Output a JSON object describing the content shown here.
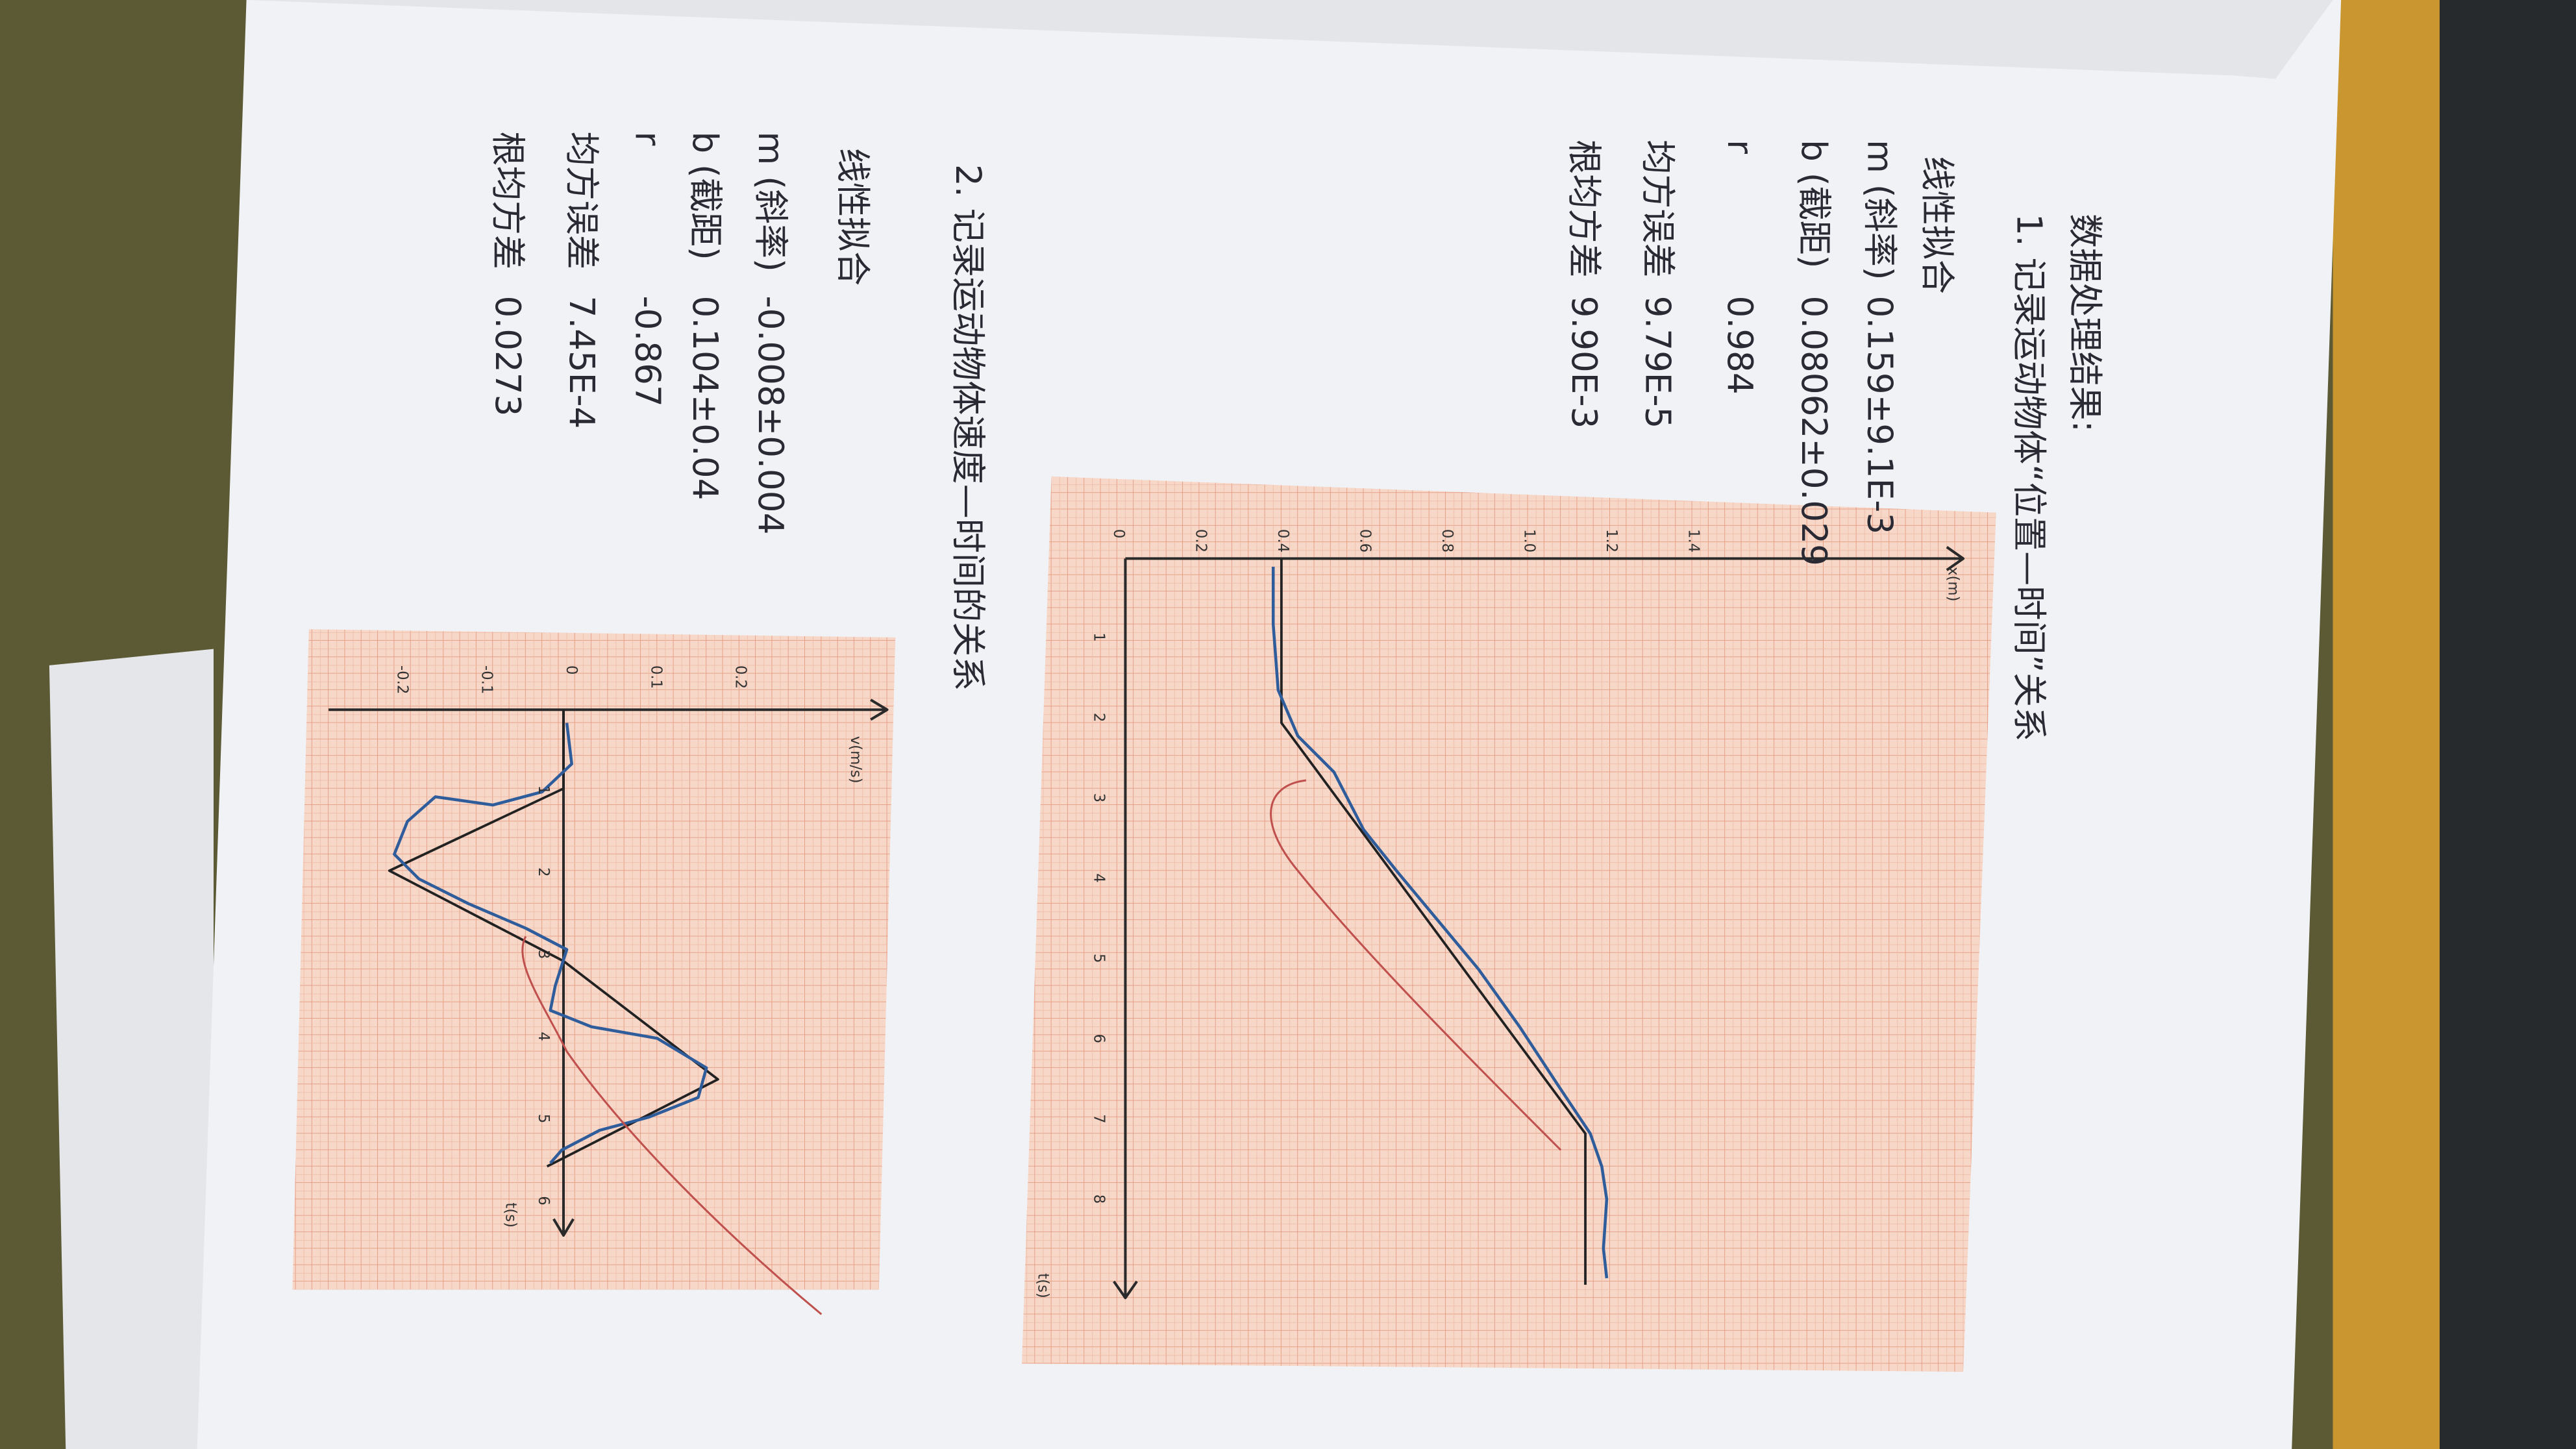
{
  "heading": "数据处理结果:",
  "section1": {
    "title": "1. 记录运动物体“位置—时间”关系",
    "fit_title": "线性拟合",
    "rows": [
      {
        "label": "m (斜率)",
        "value": "0.159±9.1E-3"
      },
      {
        "label": "b (截距)",
        "value": "0.08062±0.029"
      },
      {
        "label": "r",
        "value": "0.984"
      },
      {
        "label": "均方误差",
        "value": "9.79E-5"
      },
      {
        "label": "根均方差",
        "value": "9.90E-3"
      }
    ]
  },
  "graph1": {
    "value_axis_label": "x(m)",
    "time_axis_label": "t(s)",
    "value_ticks": [
      "0",
      "0.2",
      "0.4",
      "0.6",
      "0.8",
      "1.0",
      "1.2",
      "1.4"
    ],
    "time_ticks": [
      "1",
      "2",
      "3",
      "4",
      "5",
      "6",
      "7",
      "8"
    ]
  },
  "section2": {
    "title": "2. 记录运动物体速度—时间的关系",
    "fit_title": "线性拟合",
    "rows": [
      {
        "label": "m (斜率)",
        "value": "-0.008±0.004"
      },
      {
        "label": "b (截距)",
        "value": "0.104±0.04"
      },
      {
        "label": "r",
        "value": "-0.867"
      },
      {
        "label": "均方误差",
        "value": "7.45E-4"
      },
      {
        "label": "根均方差",
        "value": "0.0273"
      }
    ]
  },
  "graph2": {
    "value_axis_label": "v(m/s)",
    "time_axis_label": "t(s)",
    "value_ticks": [
      "-0.2",
      "-0.1",
      "0",
      "0.1",
      "0.2"
    ],
    "time_ticks": [
      "1",
      "2",
      "3",
      "4",
      "5",
      "6"
    ]
  }
}
